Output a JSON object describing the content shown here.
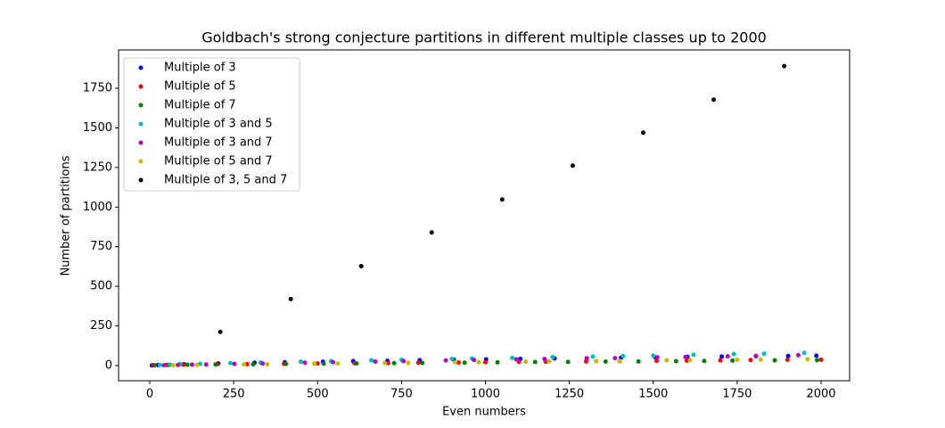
{
  "chart_data": {
    "type": "scatter",
    "title": "Goldbach's strong conjecture partitions in different multiple classes up to 2000",
    "x_label": "Even numbers",
    "y_label": "Number of partitions",
    "xlim": [
      -93,
      2085
    ],
    "ylim": [
      -96,
      1992
    ],
    "xticks": [
      0,
      250,
      500,
      750,
      1000,
      1250,
      1500,
      1750,
      2000
    ],
    "yticks": [
      0,
      250,
      500,
      750,
      1000,
      1250,
      1500,
      1750
    ],
    "legend": "upper left",
    "series": [
      {
        "name": "Multiple of 3",
        "color": "#0000ff",
        "x": [
          6,
          24,
          102,
          204,
          312,
          402,
          516,
          606,
          708,
          804,
          906,
          1002,
          1104,
          1206,
          1302,
          1404,
          1506,
          1602,
          1704,
          1806,
          1902,
          1986
        ],
        "values": [
          1,
          3,
          8,
          13,
          18,
          21,
          24,
          28,
          30,
          34,
          37,
          39,
          42,
          45,
          46,
          49,
          52,
          55,
          57,
          59,
          60,
          62
        ]
      },
      {
        "name": "Multiple of 5",
        "color": "#ff0000",
        "x": [
          10,
          50,
          100,
          200,
          290,
          400,
          500,
          610,
          710,
          800,
          920,
          1000,
          1100,
          1180,
          1300,
          1400,
          1510,
          1600,
          1700,
          1790,
          1900,
          2000
        ],
        "values": [
          2,
          4,
          6,
          8,
          9,
          11,
          13,
          15,
          16,
          18,
          19,
          21,
          23,
          24,
          26,
          28,
          30,
          31,
          33,
          35,
          37,
          37
        ]
      },
      {
        "name": "Multiple of 7",
        "color": "#008000",
        "x": [
          14,
          56,
          112,
          196,
          308,
          406,
          518,
          616,
          728,
          812,
          938,
          1036,
          1148,
          1246,
          1358,
          1456,
          1568,
          1652,
          1736,
          1862,
          1988
        ],
        "values": [
          2,
          3,
          5,
          7,
          8,
          10,
          12,
          13,
          15,
          16,
          18,
          20,
          22,
          23,
          25,
          26,
          28,
          29,
          31,
          33,
          34
        ]
      },
      {
        "name": "Multiple of 3 and 5",
        "color": "#00bfbf",
        "x": [
          30,
          60,
          90,
          150,
          240,
          330,
          450,
          540,
          660,
          750,
          900,
          960,
          1080,
          1200,
          1320,
          1410,
          1500,
          1620,
          1740,
          1830,
          1950
        ],
        "values": [
          3,
          6,
          9,
          11,
          15,
          19,
          24,
          28,
          33,
          36,
          42,
          44,
          48,
          53,
          57,
          60,
          63,
          68,
          72,
          75,
          80
        ]
      },
      {
        "name": "Multiple of 3 and 7",
        "color": "#bf00bf",
        "x": [
          42,
          84,
          126,
          168,
          252,
          336,
          462,
          546,
          672,
          756,
          882,
          966,
          1092,
          1176,
          1302,
          1386,
          1512,
          1596,
          1722,
          1806,
          1932
        ],
        "values": [
          2,
          4,
          6,
          7,
          10,
          13,
          18,
          21,
          25,
          28,
          32,
          35,
          39,
          41,
          45,
          47,
          52,
          54,
          58,
          61,
          65
        ]
      },
      {
        "name": "Multiple of 5 and 7",
        "color": "#bfbf00",
        "x": [
          70,
          140,
          280,
          350,
          490,
          560,
          700,
          770,
          910,
          980,
          1120,
          1190,
          1330,
          1400,
          1540,
          1610,
          1750,
          1820,
          1960
        ],
        "values": [
          2,
          4,
          7,
          8,
          12,
          13,
          16,
          17,
          20,
          21,
          24,
          26,
          28,
          30,
          33,
          34,
          36,
          38,
          40
        ]
      },
      {
        "name": "Multiple of 3, 5 and 7",
        "color": "#000000",
        "x": [
          210,
          420,
          630,
          840,
          1050,
          1260,
          1470,
          1680,
          1890
        ],
        "values": [
          212,
          420,
          627,
          840,
          1048,
          1262,
          1470,
          1678,
          1890
        ]
      }
    ]
  }
}
